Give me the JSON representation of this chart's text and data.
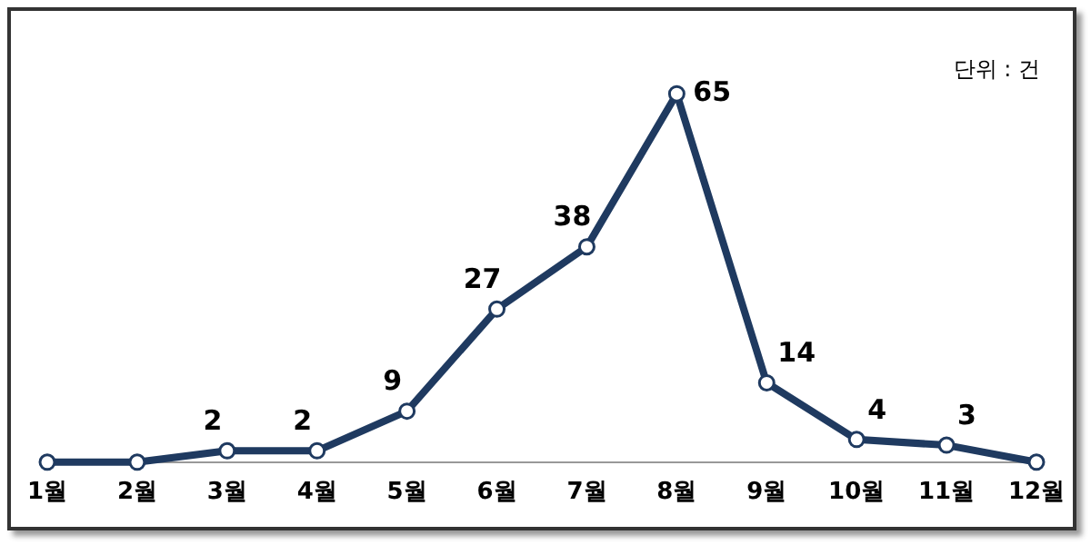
{
  "chart_data": {
    "type": "line",
    "categories": [
      "1월",
      "2월",
      "3월",
      "4월",
      "5월",
      "6월",
      "7월",
      "8월",
      "9월",
      "10월",
      "11월",
      "12월"
    ],
    "series": [
      {
        "color": "#1f3a60",
        "values": [
          0,
          0,
          2,
          2,
          9,
          27,
          38,
          65,
          14,
          4,
          3,
          0
        ],
        "value_labels": [
          null,
          null,
          "2",
          "2",
          "9",
          "27",
          "38",
          "65",
          "14",
          "4",
          "3",
          null
        ]
      }
    ],
    "annotations": [
      "단위 : 건"
    ],
    "marker": "circle",
    "line_style": "solid",
    "grid": false,
    "legend": false
  }
}
